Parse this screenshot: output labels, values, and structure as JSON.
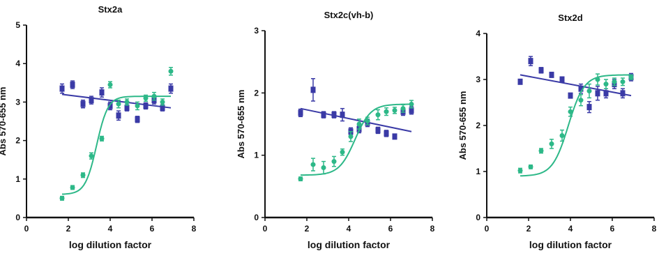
{
  "chart_data": [
    {
      "type": "scatter",
      "title": "Stx2a",
      "xlabel": "log dilution factor",
      "ylabel": "Abs 570-655 nm",
      "xlim": [
        0,
        8
      ],
      "ylim": [
        0,
        5
      ],
      "xticks": [
        "0",
        "2",
        "4",
        "6",
        "8"
      ],
      "yticks": [
        "0",
        "1",
        "2",
        "3",
        "4",
        "5"
      ],
      "series": [
        {
          "color": "#3a3aa6",
          "marker": "square",
          "x": [
            1.7,
            2.2,
            2.7,
            3.1,
            3.6,
            4.0,
            4.4,
            4.8,
            5.3,
            5.7,
            6.1,
            6.5,
            6.9
          ],
          "y": [
            3.35,
            3.45,
            2.95,
            3.05,
            3.25,
            2.9,
            2.65,
            2.85,
            2.55,
            2.9,
            3.05,
            2.85,
            3.35
          ],
          "err": [
            0.12,
            0.1,
            0.1,
            0.1,
            0.12,
            0.1,
            0.12,
            0.08,
            0.08,
            0.08,
            0.1,
            0.08,
            0.12
          ],
          "fit": {
            "kind": "line",
            "x": [
              1.7,
              6.9
            ],
            "y": [
              3.2,
              2.85
            ]
          }
        },
        {
          "color": "#2db888",
          "marker": "circle",
          "x": [
            1.7,
            2.2,
            2.7,
            3.1,
            3.6,
            4.0,
            4.4,
            4.8,
            5.3,
            5.7,
            6.1,
            6.5,
            6.9
          ],
          "y": [
            0.5,
            0.78,
            1.1,
            1.6,
            2.05,
            3.45,
            2.95,
            3.0,
            2.9,
            3.1,
            3.15,
            3.0,
            3.8
          ],
          "err": [
            0.05,
            0.05,
            0.06,
            0.08,
            0.06,
            0.08,
            0.1,
            0.08,
            0.1,
            0.08,
            0.1,
            0.08,
            0.1
          ],
          "fit": {
            "kind": "sigmoid",
            "bottom": 0.6,
            "top": 3.15,
            "x0": 3.35,
            "slope": 1.6
          }
        }
      ]
    },
    {
      "type": "scatter",
      "title": "Stx2c(vh-b)",
      "xlabel": "log dilution factor",
      "ylabel": "Abs 570-655 nm",
      "xlim": [
        0,
        8
      ],
      "ylim": [
        0,
        3
      ],
      "xticks": [
        "0",
        "2",
        "4",
        "6",
        "8"
      ],
      "yticks": [
        "0",
        "1",
        "2",
        "3"
      ],
      "series": [
        {
          "color": "#3a3aa6",
          "marker": "square",
          "x": [
            1.7,
            2.3,
            2.8,
            3.3,
            3.7,
            4.1,
            4.5,
            4.9,
            5.4,
            5.8,
            6.2,
            6.6,
            7.0
          ],
          "y": [
            1.68,
            2.05,
            1.65,
            1.65,
            1.65,
            1.38,
            1.42,
            1.52,
            1.4,
            1.35,
            1.3,
            1.7,
            1.72
          ],
          "err": [
            0.06,
            0.18,
            0.05,
            0.05,
            0.1,
            0.06,
            0.06,
            0.06,
            0.05,
            0.05,
            0.04,
            0.06,
            0.06
          ],
          "fit": {
            "kind": "line",
            "x": [
              1.7,
              7.0
            ],
            "y": [
              1.75,
              1.38
            ]
          }
        },
        {
          "color": "#2db888",
          "marker": "circle",
          "x": [
            1.7,
            2.3,
            2.8,
            3.3,
            3.7,
            4.1,
            4.5,
            4.9,
            5.4,
            5.8,
            6.2,
            6.6,
            7.0
          ],
          "y": [
            0.62,
            0.85,
            0.8,
            0.9,
            1.05,
            1.3,
            1.5,
            1.55,
            1.65,
            1.7,
            1.72,
            1.75,
            1.82
          ],
          "err": [
            0.03,
            0.1,
            0.1,
            0.08,
            0.05,
            0.08,
            0.08,
            0.06,
            0.08,
            0.06,
            0.05,
            0.06,
            0.06
          ],
          "fit": {
            "kind": "sigmoid",
            "bottom": 0.68,
            "top": 1.82,
            "x0": 4.3,
            "slope": 1.15
          }
        }
      ]
    },
    {
      "type": "scatter",
      "title": "Stx2d",
      "xlabel": "log dilution factor",
      "ylabel": "Abs 570-655 nm",
      "xlim": [
        0,
        8
      ],
      "ylim": [
        0,
        4
      ],
      "xticks": [
        "0",
        "2",
        "4",
        "6",
        "8"
      ],
      "yticks": [
        "0",
        "1",
        "2",
        "3",
        "4"
      ],
      "series": [
        {
          "color": "#3a3aa6",
          "marker": "square",
          "x": [
            1.6,
            2.1,
            2.6,
            3.1,
            3.6,
            4.0,
            4.5,
            4.9,
            5.3,
            5.7,
            6.1,
            6.5,
            6.9
          ],
          "y": [
            2.95,
            3.4,
            3.2,
            3.1,
            3.0,
            2.65,
            2.8,
            2.4,
            2.7,
            2.7,
            2.9,
            2.7,
            3.05
          ],
          "err": [
            0.04,
            0.1,
            0.06,
            0.05,
            0.05,
            0.05,
            0.1,
            0.12,
            0.15,
            0.1,
            0.1,
            0.1,
            0.08
          ],
          "fit": {
            "kind": "line",
            "x": [
              1.6,
              6.9
            ],
            "y": [
              3.1,
              2.65
            ]
          }
        },
        {
          "color": "#2db888",
          "marker": "circle",
          "x": [
            1.6,
            2.1,
            2.6,
            3.1,
            3.6,
            4.0,
            4.5,
            4.9,
            5.3,
            5.7,
            6.1,
            6.5,
            6.9
          ],
          "y": [
            1.02,
            1.1,
            1.45,
            1.6,
            1.78,
            2.3,
            2.55,
            2.75,
            3.0,
            2.9,
            2.95,
            2.95,
            3.05
          ],
          "err": [
            0.05,
            0.04,
            0.05,
            0.1,
            0.12,
            0.1,
            0.12,
            0.15,
            0.12,
            0.1,
            0.08,
            0.08,
            0.05
          ],
          "fit": {
            "kind": "sigmoid",
            "bottom": 0.9,
            "top": 3.1,
            "x0": 3.9,
            "slope": 1.15
          }
        }
      ]
    }
  ]
}
